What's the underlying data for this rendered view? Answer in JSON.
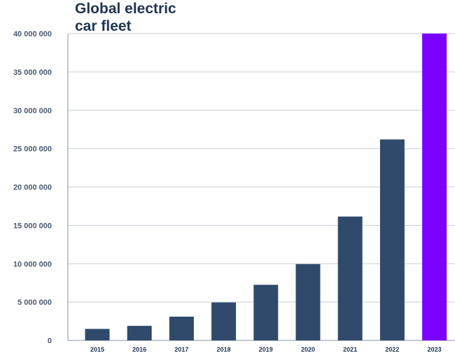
{
  "chart_data": {
    "type": "bar",
    "title": "Global electric\ncar fleet",
    "xlabel": "",
    "ylabel": "",
    "categories": [
      "2015",
      "2016",
      "2017",
      "2018",
      "2019",
      "2020",
      "2021",
      "2022",
      "2023"
    ],
    "values": [
      1500000,
      1900000,
      3100000,
      4950000,
      7250000,
      9950000,
      16150000,
      26200000,
      40000000
    ],
    "ylim": [
      0,
      40000000
    ],
    "yticks": [
      0,
      5000000,
      10000000,
      15000000,
      20000000,
      25000000,
      30000000,
      35000000,
      40000000
    ],
    "ytick_labels": [
      "0",
      "5 000 000",
      "10 000 000",
      "15 000 000",
      "20 000 000",
      "25 000 000",
      "30 000 000",
      "35 000 000",
      "40 000 000"
    ],
    "grid": true,
    "colors": {
      "bar": "#2f4a6b",
      "highlight": "#7a00ff",
      "grid": "#c8cdd6",
      "text": "#1f3552"
    },
    "highlight_category": "2023"
  }
}
